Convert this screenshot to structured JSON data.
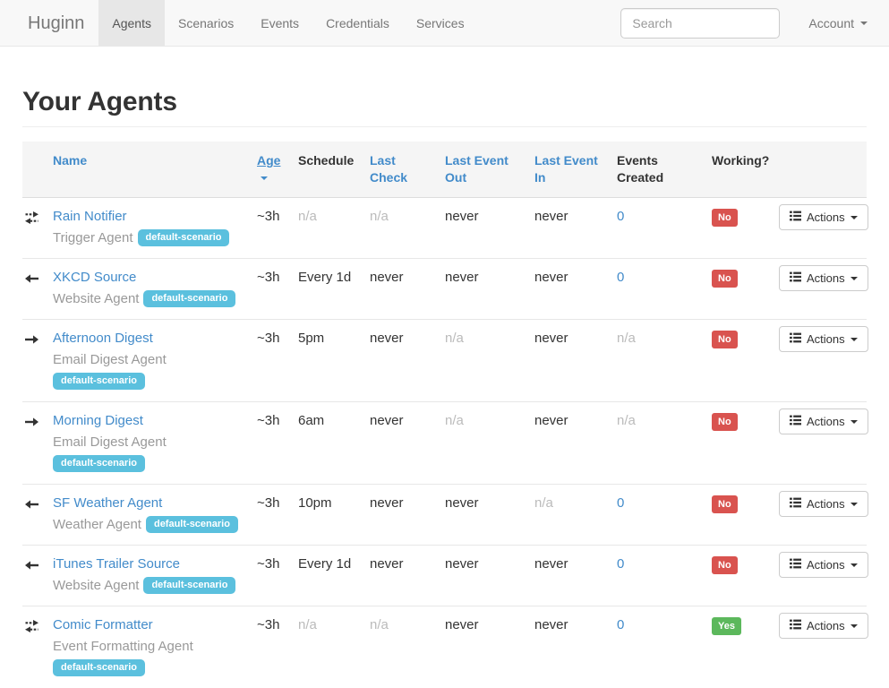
{
  "brand": "Huginn",
  "nav": {
    "items": [
      {
        "label": "Agents",
        "active": true
      },
      {
        "label": "Scenarios",
        "active": false
      },
      {
        "label": "Events",
        "active": false
      },
      {
        "label": "Credentials",
        "active": false
      },
      {
        "label": "Services",
        "active": false
      }
    ],
    "search_placeholder": "Search",
    "account_label": "Account"
  },
  "page": {
    "title": "Your Agents"
  },
  "colors": {
    "link_blue": "#428bca",
    "scenario_badge": "#5bc0de",
    "working_no": "#d9534f",
    "working_yes": "#5cb85c",
    "navbar_bg": "#f8f8f8",
    "navbar_active_bg": "#e7e7e7"
  },
  "table": {
    "actions_label": "Actions",
    "columns": [
      {
        "key": "icon",
        "label": "",
        "link": false
      },
      {
        "key": "name",
        "label": "Name",
        "link": true
      },
      {
        "key": "age",
        "label": "Age",
        "link": true,
        "sorted": "desc"
      },
      {
        "key": "schedule",
        "label": "Schedule",
        "link": false
      },
      {
        "key": "last-check",
        "label": "Last Check",
        "link": true
      },
      {
        "key": "last-event-out",
        "label": "Last Event Out",
        "link": true
      },
      {
        "key": "last-event-in",
        "label": "Last Event In",
        "link": true
      },
      {
        "key": "events-created",
        "label": "Events Created",
        "link": false
      },
      {
        "key": "working",
        "label": "Working?",
        "link": false
      },
      {
        "key": "actions",
        "label": "",
        "link": false
      }
    ],
    "rows": [
      {
        "icon": "exchange-icon",
        "name": "Rain Notifier",
        "type": "Trigger Agent",
        "scenario": "default-scenario",
        "age": {
          "text": "~3h"
        },
        "schedule": {
          "text": "n/a",
          "muted": true
        },
        "last_check": {
          "text": "n/a",
          "muted": true
        },
        "last_event_out": {
          "text": "never"
        },
        "last_event_in": {
          "text": "never"
        },
        "events_created": {
          "text": "0",
          "link": true
        },
        "working": {
          "text": "No",
          "status": "no"
        }
      },
      {
        "icon": "arrow-left-icon",
        "name": "XKCD Source",
        "type": "Website Agent",
        "scenario": "default-scenario",
        "age": {
          "text": "~3h"
        },
        "schedule": {
          "text": "Every 1d"
        },
        "last_check": {
          "text": "never"
        },
        "last_event_out": {
          "text": "never"
        },
        "last_event_in": {
          "text": "never"
        },
        "events_created": {
          "text": "0",
          "link": true
        },
        "working": {
          "text": "No",
          "status": "no"
        }
      },
      {
        "icon": "arrow-right-icon",
        "name": "Afternoon Digest",
        "type": "Email Digest Agent",
        "scenario": "default-scenario",
        "age": {
          "text": "~3h"
        },
        "schedule": {
          "text": "5pm"
        },
        "last_check": {
          "text": "never"
        },
        "last_event_out": {
          "text": "n/a",
          "muted": true
        },
        "last_event_in": {
          "text": "never"
        },
        "events_created": {
          "text": "n/a",
          "muted": true
        },
        "working": {
          "text": "No",
          "status": "no"
        }
      },
      {
        "icon": "arrow-right-icon",
        "name": "Morning Digest",
        "type": "Email Digest Agent",
        "scenario": "default-scenario",
        "age": {
          "text": "~3h"
        },
        "schedule": {
          "text": "6am"
        },
        "last_check": {
          "text": "never"
        },
        "last_event_out": {
          "text": "n/a",
          "muted": true
        },
        "last_event_in": {
          "text": "never"
        },
        "events_created": {
          "text": "n/a",
          "muted": true
        },
        "working": {
          "text": "No",
          "status": "no"
        }
      },
      {
        "icon": "arrow-left-icon",
        "name": "SF Weather Agent",
        "type": "Weather Agent",
        "scenario": "default-scenario",
        "age": {
          "text": "~3h"
        },
        "schedule": {
          "text": "10pm"
        },
        "last_check": {
          "text": "never"
        },
        "last_event_out": {
          "text": "never"
        },
        "last_event_in": {
          "text": "n/a",
          "muted": true
        },
        "events_created": {
          "text": "0",
          "link": true
        },
        "working": {
          "text": "No",
          "status": "no"
        }
      },
      {
        "icon": "arrow-left-icon",
        "name": "iTunes Trailer Source",
        "type": "Website Agent",
        "scenario": "default-scenario",
        "age": {
          "text": "~3h"
        },
        "schedule": {
          "text": "Every 1d"
        },
        "last_check": {
          "text": "never"
        },
        "last_event_out": {
          "text": "never"
        },
        "last_event_in": {
          "text": "never"
        },
        "events_created": {
          "text": "0",
          "link": true
        },
        "working": {
          "text": "No",
          "status": "no"
        }
      },
      {
        "icon": "exchange-icon",
        "name": "Comic Formatter",
        "type": "Event Formatting Agent",
        "scenario": "default-scenario",
        "age": {
          "text": "~3h"
        },
        "schedule": {
          "text": "n/a",
          "muted": true
        },
        "last_check": {
          "text": "n/a",
          "muted": true
        },
        "last_event_out": {
          "text": "never"
        },
        "last_event_in": {
          "text": "never"
        },
        "events_created": {
          "text": "0",
          "link": true
        },
        "working": {
          "text": "Yes",
          "status": "yes"
        }
      }
    ]
  }
}
